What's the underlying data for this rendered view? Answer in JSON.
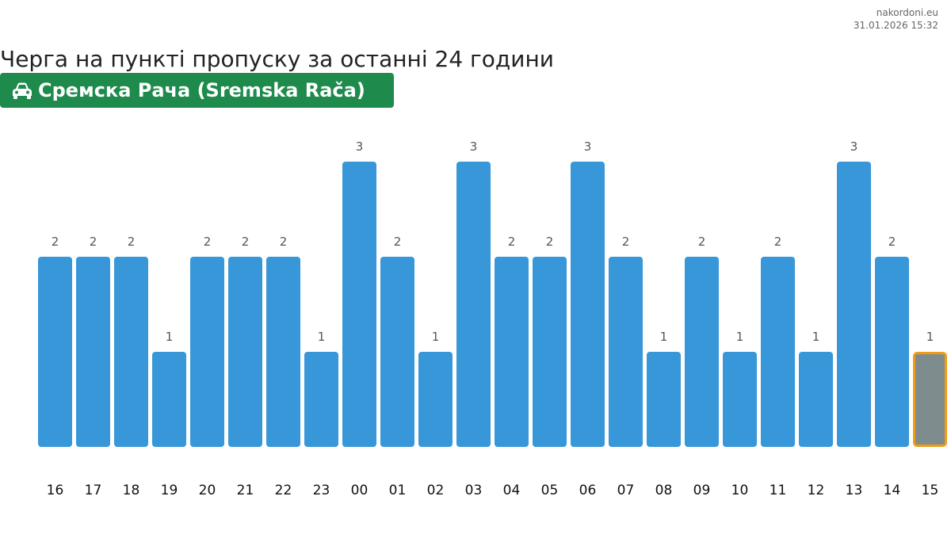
{
  "brand": {
    "site": "nakordoni.eu",
    "timestamp": "31.01.2026 15:32"
  },
  "header": {
    "title": "Черга на пункті пропуску за останні 24 години",
    "checkpoint": "Сремска Рача (Sremska Rača)",
    "checkpoint_icon": "car-icon"
  },
  "colors": {
    "bar": "#3897d9",
    "current_bar": "#7f8c8d",
    "current_border": "#f39c12",
    "badge": "#1e8a4c"
  },
  "chart_data": {
    "type": "bar",
    "title": "",
    "xlabel": "",
    "ylabel": "",
    "categories": [
      "16",
      "17",
      "18",
      "19",
      "20",
      "21",
      "22",
      "23",
      "00",
      "01",
      "02",
      "03",
      "04",
      "05",
      "06",
      "07",
      "08",
      "09",
      "10",
      "11",
      "12",
      "13",
      "14",
      "15"
    ],
    "values": [
      2,
      2,
      2,
      1,
      2,
      2,
      2,
      1,
      3,
      2,
      1,
      3,
      2,
      2,
      3,
      2,
      1,
      2,
      1,
      2,
      1,
      3,
      2,
      1
    ],
    "ylim": [
      0,
      3
    ],
    "grid": false,
    "legend": "none",
    "highlight_category": "15"
  }
}
